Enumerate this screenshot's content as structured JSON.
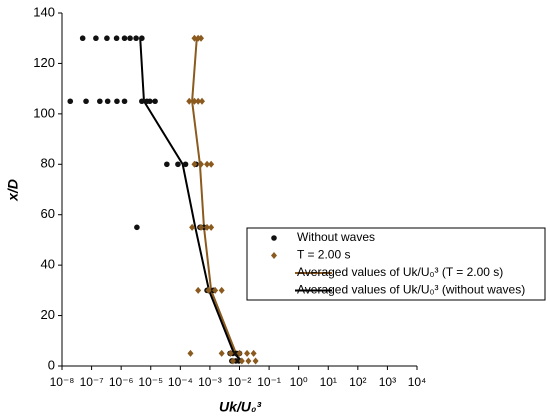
{
  "chart_data": {
    "type": "scatter",
    "xlabel": "Uk/U₀³",
    "ylabel": "x/D",
    "xscale": "log",
    "xlim": [
      1e-08,
      10000
    ],
    "xticks": [
      {
        "value": 1e-08,
        "label": "10⁻⁸"
      },
      {
        "value": 1e-07,
        "label": "10⁻⁷"
      },
      {
        "value": 1e-06,
        "label": "10⁻⁶"
      },
      {
        "value": 1e-05,
        "label": "10⁻⁵"
      },
      {
        "value": 0.0001,
        "label": "10⁻⁴"
      },
      {
        "value": 0.001,
        "label": "10⁻³"
      },
      {
        "value": 0.01,
        "label": "10⁻²"
      },
      {
        "value": 0.1,
        "label": "10⁻¹"
      },
      {
        "value": 1,
        "label": "10⁰"
      },
      {
        "value": 10,
        "label": "10¹"
      },
      {
        "value": 100,
        "label": "10²"
      },
      {
        "value": 1000,
        "label": "10³"
      },
      {
        "value": 10000,
        "label": "10⁴"
      }
    ],
    "ylim": [
      0,
      140
    ],
    "yticks": [
      0,
      20,
      40,
      60,
      80,
      100,
      120,
      140
    ],
    "legend": "center right",
    "series": [
      {
        "name": "Without waves",
        "mode": "markers",
        "marker": "circle",
        "color": "#111111",
        "x": [
          5e-08,
          1.4e-07,
          3.3e-07,
          7e-07,
          1.3e-06,
          2e-06,
          3.2e-06,
          5e-06,
          1.9e-08,
          6.5e-08,
          1.9e-07,
          3.5e-07,
          7.2e-07,
          1.3e-06,
          5e-06,
          7.4e-06,
          9.3e-06,
          1.4e-05,
          3.5e-05,
          8.3e-05,
          0.00015,
          0.00034,
          3.4e-06,
          0.00046,
          0.00063,
          0.0008,
          0.0013,
          0.0048,
          0.006,
          0.008,
          0.01,
          0.0055,
          0.0075,
          0.0095
        ],
        "y": [
          130,
          130,
          130,
          130,
          130,
          130,
          130,
          130,
          105,
          105,
          105,
          105,
          105,
          105,
          105,
          105,
          105,
          105,
          80,
          80,
          80,
          80,
          55,
          55,
          55,
          30,
          30,
          5,
          5,
          5,
          5,
          2,
          2,
          2
        ]
      },
      {
        "name": "T = 2.00 s",
        "mode": "markers",
        "marker": "diamond",
        "color": "#8b5a1e",
        "x": [
          0.0003,
          0.0004,
          0.0005,
          0.0002,
          0.0003,
          0.0004,
          0.00054,
          0.0003,
          0.0005,
          0.0008,
          0.0011,
          0.00025,
          0.0005,
          0.0008,
          0.0011,
          0.0004,
          0.0009,
          0.0015,
          0.0025,
          0.00022,
          0.0025,
          0.005,
          0.01,
          0.018,
          0.03,
          0.006,
          0.012,
          0.02,
          0.035
        ],
        "y": [
          130,
          130,
          130,
          105,
          105,
          105,
          105,
          80,
          80,
          80,
          80,
          55,
          55,
          55,
          55,
          30,
          30,
          30,
          30,
          5,
          5,
          5,
          5,
          5,
          5,
          2,
          2,
          2,
          2
        ]
      },
      {
        "name": "Averaged values of Uk/U₀³ (T = 2.00 s)",
        "mode": "lines",
        "color": "#8b5a1e",
        "x": [
          0.00036,
          0.00025,
          0.00046,
          0.00063,
          0.0011,
          0.0076,
          0.01
        ],
        "y": [
          130,
          105,
          80,
          55,
          30,
          5,
          2
        ]
      },
      {
        "name": "Averaged values of Uk/U₀³ (without waves)",
        "mode": "lines",
        "color": "#000000",
        "x": [
          4.4e-06,
          5.9e-06,
          0.00012,
          0.00032,
          0.00093,
          0.0065,
          0.012
        ],
        "y": [
          130,
          105,
          80,
          55,
          30,
          5,
          2
        ]
      }
    ]
  }
}
